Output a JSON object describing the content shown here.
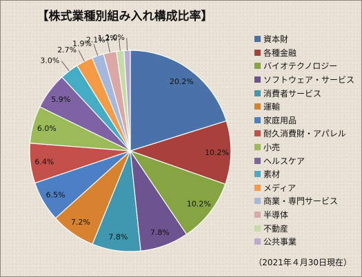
{
  "chart_data": {
    "type": "pie",
    "title": "【株式業種別組み入れ構成比率】",
    "note": "（2021年４月30日現在）",
    "legend_position": "right",
    "slices": [
      {
        "name": "資本財",
        "value": 20.2,
        "label": "20.2%",
        "color": "#4a72a8"
      },
      {
        "name": "各種金融",
        "value": 10.2,
        "label": "10.2%",
        "color": "#a8403c"
      },
      {
        "name": "バイオテクノロジー",
        "value": 10.2,
        "label": "10.2%",
        "color": "#86a542"
      },
      {
        "name": "ソフトウェア・サービス",
        "value": 7.8,
        "label": "7.8%",
        "color": "#6d5390"
      },
      {
        "name": "消費者サービス",
        "value": 7.8,
        "label": "7.8%",
        "color": "#3f97b0"
      },
      {
        "name": "運輸",
        "value": 7.2,
        "label": "7.2%",
        "color": "#d6822f"
      },
      {
        "name": "家庭用品",
        "value": 6.5,
        "label": "6.5%",
        "color": "#4d7fc4"
      },
      {
        "name": "耐久消費財・アパレル",
        "value": 6.4,
        "label": "6.4%",
        "color": "#c4504b"
      },
      {
        "name": "小売",
        "value": 6.0,
        "label": "6.0%",
        "color": "#9bbb59"
      },
      {
        "name": "ヘルスケア",
        "value": 5.9,
        "label": "5.9%",
        "color": "#7e62a3"
      },
      {
        "name": "素材",
        "value": 3.0,
        "label": "3.0%",
        "color": "#45acc6"
      },
      {
        "name": "メディア",
        "value": 2.7,
        "label": "2.7%",
        "color": "#f59a45"
      },
      {
        "name": "商業・専門サービス",
        "value": 1.9,
        "label": "1.9%",
        "color": "#a3b8dc"
      },
      {
        "name": "半導体",
        "value": 2.1,
        "label": "2.1%",
        "color": "#dba8a6"
      },
      {
        "name": "不動産",
        "value": 1.2,
        "label": "1.2%",
        "color": "#c6dca6"
      },
      {
        "name": "公共事業",
        "value": 1.0,
        "label": "1.0%",
        "color": "#b8acd0"
      }
    ]
  }
}
